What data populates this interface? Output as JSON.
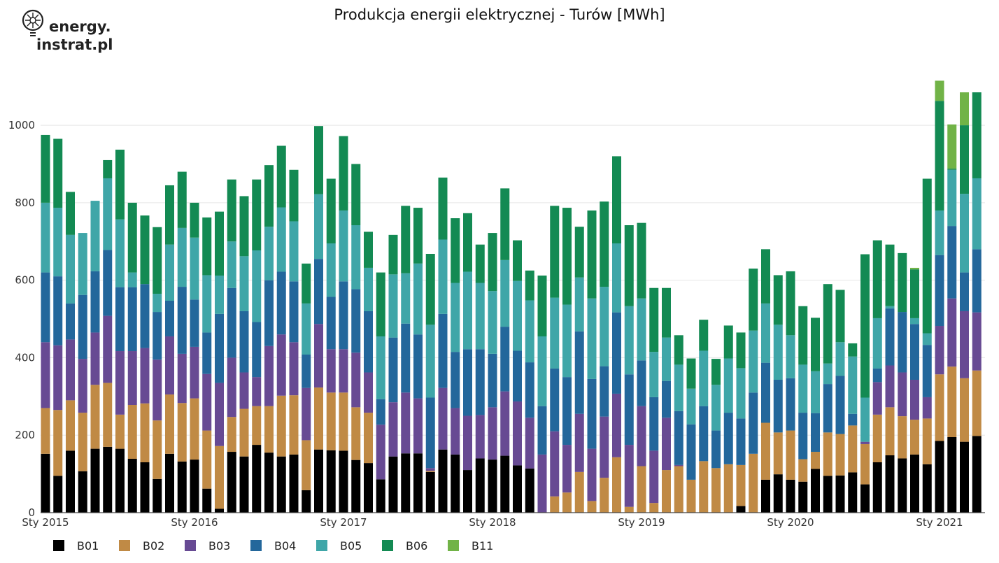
{
  "header": {
    "title": "Produkcja energii elektrycznej - Turów [MWh]"
  },
  "logo": {
    "line1": "energy.",
    "line2": "instrat.pl"
  },
  "colors": {
    "B01": "#000000",
    "B02": "#c08a45",
    "B03": "#674a93",
    "B04": "#23679b",
    "B05": "#3fa6a8",
    "B06": "#138a53",
    "B11": "#71b347",
    "grid": "#e6e6e6"
  },
  "chart_data": {
    "type": "bar",
    "stacked": true,
    "title": "Produkcja energii elektrycznej - Turów [MWh]",
    "xlabel": "",
    "ylabel": "",
    "ylim": [
      0,
      1150
    ],
    "yticks": [
      0,
      200,
      400,
      600,
      800,
      1000
    ],
    "grid": true,
    "legend_position": "bottom",
    "x_tick_labels": [
      "Sty 2015",
      "Sty 2016",
      "Sty 2017",
      "Sty 2018",
      "Sty 2019",
      "Sty 2020",
      "Sty 2021"
    ],
    "x_tick_month_index": [
      0,
      12,
      24,
      36,
      48,
      60,
      72
    ],
    "series": [
      {
        "name": "B01",
        "cumulative": [
          152,
          95,
          160,
          107,
          165,
          170,
          165,
          139,
          130,
          87,
          152,
          132,
          137,
          62,
          10,
          157,
          145,
          175,
          155,
          145,
          150,
          58,
          163,
          161,
          160,
          136,
          128,
          86,
          145,
          153,
          153,
          105,
          163,
          150,
          110,
          140,
          137,
          147,
          122,
          114,
          0,
          0,
          0,
          0,
          0,
          0,
          0,
          0,
          0,
          0,
          0,
          0,
          0,
          0,
          0,
          0,
          17,
          0,
          85,
          99,
          85,
          80,
          113,
          95,
          96,
          104,
          73,
          130,
          148,
          140,
          150,
          125,
          185,
          195,
          183,
          198
        ]
      },
      {
        "name": "B02",
        "cumulative": [
          270,
          265,
          290,
          258,
          330,
          335,
          253,
          278,
          282,
          238,
          305,
          283,
          295,
          212,
          172,
          247,
          268,
          275,
          275,
          302,
          303,
          187,
          323,
          310,
          310,
          272,
          258,
          86,
          145,
          153,
          153,
          108,
          163,
          150,
          110,
          140,
          137,
          147,
          122,
          114,
          0,
          42,
          52,
          105,
          30,
          90,
          143,
          15,
          120,
          25,
          110,
          120,
          85,
          133,
          115,
          125,
          123,
          152,
          232,
          207,
          212,
          138,
          157,
          207,
          203,
          225,
          177,
          253,
          272,
          249,
          240,
          243,
          357,
          377,
          347,
          367
        ]
      },
      {
        "name": "B03",
        "cumulative": [
          440,
          432,
          447,
          397,
          465,
          508,
          417,
          417,
          425,
          395,
          455,
          410,
          428,
          358,
          335,
          400,
          362,
          350,
          430,
          460,
          440,
          322,
          487,
          422,
          422,
          413,
          362,
          227,
          285,
          310,
          295,
          115,
          322,
          270,
          250,
          252,
          272,
          313,
          287,
          245,
          150,
          210,
          175,
          255,
          165,
          248,
          307,
          175,
          275,
          160,
          245,
          123,
          85,
          133,
          115,
          125,
          123,
          152,
          232,
          207,
          212,
          138,
          157,
          207,
          203,
          225,
          183,
          337,
          380,
          362,
          343,
          298,
          482,
          553,
          520,
          517
        ]
      },
      {
        "name": "B05",
        "cumulative": [
          800,
          787,
          717,
          722,
          805,
          863,
          757,
          620,
          590,
          565,
          692,
          735,
          710,
          613,
          612,
          700,
          662,
          677,
          738,
          788,
          752,
          540,
          822,
          695,
          780,
          742,
          632,
          455,
          615,
          618,
          643,
          485,
          705,
          593,
          622,
          593,
          572,
          652,
          598,
          548,
          455,
          555,
          537,
          607,
          553,
          583,
          695,
          533,
          553,
          415,
          452,
          382,
          320,
          418,
          330,
          398,
          373,
          470,
          540,
          485,
          458,
          382,
          365,
          385,
          440,
          403,
          297,
          502,
          533,
          518,
          502,
          463,
          780,
          885,
          823,
          863
        ]
      },
      {
        "name": "B06",
        "cumulative": [
          975,
          965,
          828,
          722,
          805,
          910,
          937,
          800,
          767,
          737,
          845,
          880,
          800,
          762,
          777,
          860,
          817,
          860,
          897,
          947,
          885,
          643,
          998,
          862,
          972,
          900,
          725,
          620,
          717,
          792,
          787,
          668,
          865,
          760,
          773,
          692,
          722,
          837,
          703,
          625,
          612,
          792,
          787,
          738,
          780,
          803,
          920,
          742,
          748,
          580,
          580,
          458,
          398,
          498,
          397,
          483,
          465,
          630,
          680,
          613,
          623,
          533,
          503,
          590,
          575,
          437,
          667,
          703,
          692,
          670,
          628,
          862,
          1063,
          888,
          1000,
          1085
        ]
      },
      {
        "name": "B11",
        "cumulative": [
          975,
          965,
          828,
          722,
          805,
          910,
          937,
          800,
          767,
          737,
          845,
          880,
          800,
          762,
          777,
          860,
          817,
          860,
          897,
          947,
          885,
          643,
          998,
          862,
          972,
          900,
          725,
          620,
          717,
          792,
          787,
          668,
          865,
          760,
          773,
          692,
          722,
          837,
          703,
          625,
          612,
          792,
          787,
          738,
          780,
          803,
          920,
          742,
          748,
          580,
          580,
          458,
          398,
          498,
          397,
          483,
          465,
          630,
          680,
          613,
          623,
          533,
          503,
          590,
          575,
          437,
          667,
          703,
          692,
          670,
          632,
          862,
          1115,
          1002,
          1085
        ]
      }
    ]
  }
}
